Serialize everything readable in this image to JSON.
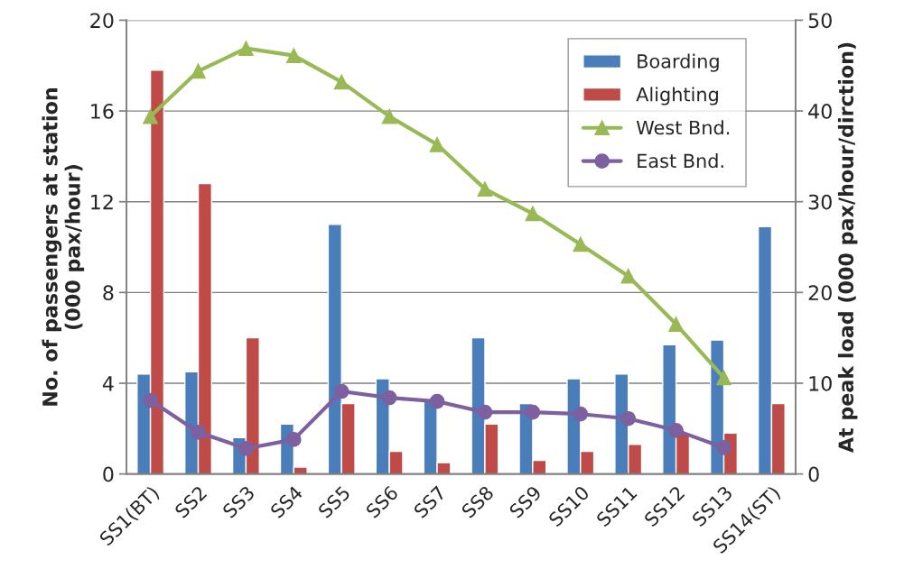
{
  "chart_data": {
    "type": "bar",
    "categories": [
      "SS1(BT)",
      "SS2",
      "SS3",
      "SS4",
      "SS5",
      "SS6",
      "SS7",
      "SS8",
      "SS9",
      "SS10",
      "SS11",
      "SS12",
      "SS13",
      "SS14(ST)"
    ],
    "series": [
      {
        "name": "Boarding",
        "color": "#4a7ebb",
        "values": [
          4.4,
          4.5,
          1.6,
          2.2,
          11.0,
          4.2,
          3.2,
          6.0,
          3.1,
          4.2,
          4.4,
          5.7,
          5.9,
          10.9
        ]
      },
      {
        "name": "Alighting",
        "color": "#be4b48",
        "values": [
          17.8,
          12.8,
          6.0,
          0.3,
          3.1,
          1.0,
          0.5,
          2.2,
          0.6,
          1.0,
          1.3,
          1.8,
          1.8,
          3.1
        ]
      },
      {
        "name": "West Bnd.",
        "type": "line",
        "axis": "y2",
        "marker": "triangle",
        "color": "#98b954",
        "values": [
          39.4,
          44.4,
          46.9,
          46.1,
          43.2,
          39.4,
          36.3,
          31.4,
          28.7,
          25.3,
          21.8,
          16.5,
          10.6,
          null
        ]
      },
      {
        "name": "East Bnd.",
        "type": "line",
        "axis": "y2",
        "marker": "circle",
        "color": "#7d60a0",
        "values": [
          8.1,
          4.6,
          2.8,
          3.8,
          9.1,
          8.4,
          8.0,
          6.8,
          6.8,
          6.6,
          6.1,
          4.8,
          2.9,
          null
        ]
      }
    ],
    "ylabel": "No. of passengers at station\n(000 pax/hour)",
    "y2label": "At peak load (000 pax/hour/dirction)",
    "ylim": [
      0,
      20
    ],
    "yticks": [
      0,
      4,
      8,
      12,
      16,
      20
    ],
    "y2lim": [
      0,
      50
    ],
    "y2ticks": [
      0,
      10,
      20,
      30,
      40,
      50
    ],
    "grid": "y",
    "legend": "top right"
  }
}
